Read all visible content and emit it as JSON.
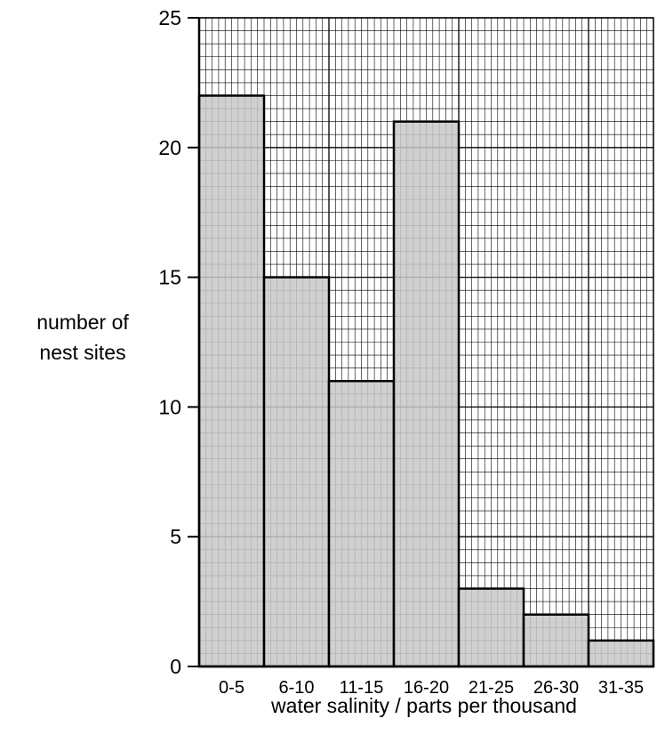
{
  "chart_data": {
    "type": "bar",
    "title": "",
    "xlabel": "water salinity / parts per thousand",
    "ylabel_lines": [
      "number of",
      "nest sites"
    ],
    "categories": [
      "0-5",
      "6-10",
      "11-15",
      "16-20",
      "21-25",
      "26-30",
      "31-35"
    ],
    "values": [
      22,
      15,
      11,
      21,
      3,
      2,
      1
    ],
    "ylim": [
      0,
      25
    ],
    "yticks": [
      "0",
      "5",
      "10",
      "15",
      "20",
      "25"
    ],
    "grid": true,
    "legend": "none",
    "colors": {
      "bar_fill": "#c8c8c8",
      "grid_minor": "#000000",
      "grid_major": "#000000",
      "axis": "#000000"
    }
  }
}
